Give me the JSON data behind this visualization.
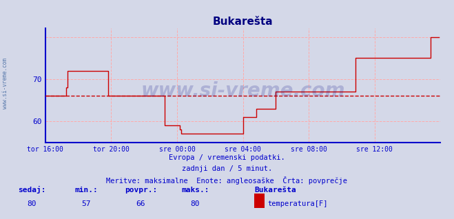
{
  "title": "Bukarešta",
  "subtitle_lines": [
    "Evropa / vremenski podatki.",
    "zadnji dan / 5 minut.",
    "Meritve: maksimalne  Enote: angleosaške  Črta: povprečje"
  ],
  "footer_labels": [
    "sedaj:",
    "min.:",
    "povpr.:",
    "maks.:",
    "Bukarešta"
  ],
  "footer_values": [
    "80",
    "57",
    "66",
    "80"
  ],
  "legend_label": "temperatura[F]",
  "legend_color": "#cc0000",
  "background_color": "#d4d8e8",
  "plot_bg_color": "#d4d8e8",
  "title_color": "#000080",
  "axis_color": "#0000cc",
  "grid_color": "#ffaaaa",
  "avg_line_color": "#cc0000",
  "avg_line_value": 66,
  "line_color": "#cc0000",
  "watermark": "www.si-vreme.com",
  "watermark_color": "#000080",
  "x_tick_labels": [
    "tor 16:00",
    "tor 20:00",
    "sre 00:00",
    "sre 04:00",
    "sre 08:00",
    "sre 12:00"
  ],
  "x_tick_positions": [
    0,
    48,
    96,
    144,
    192,
    240
  ],
  "ylim": [
    55,
    82
  ],
  "yticks": [
    60,
    70
  ],
  "xlim": [
    0,
    288
  ],
  "data_points": [
    [
      0,
      66
    ],
    [
      1,
      66
    ],
    [
      2,
      66
    ],
    [
      3,
      66
    ],
    [
      4,
      66
    ],
    [
      5,
      66
    ],
    [
      6,
      66
    ],
    [
      7,
      66
    ],
    [
      8,
      66
    ],
    [
      9,
      66
    ],
    [
      10,
      66
    ],
    [
      11,
      66
    ],
    [
      12,
      66
    ],
    [
      13,
      66
    ],
    [
      14,
      66
    ],
    [
      15,
      68
    ],
    [
      16,
      72
    ],
    [
      17,
      72
    ],
    [
      18,
      72
    ],
    [
      19,
      72
    ],
    [
      20,
      72
    ],
    [
      21,
      72
    ],
    [
      22,
      72
    ],
    [
      23,
      72
    ],
    [
      24,
      72
    ],
    [
      25,
      72
    ],
    [
      26,
      72
    ],
    [
      27,
      72
    ],
    [
      28,
      72
    ],
    [
      29,
      72
    ],
    [
      30,
      72
    ],
    [
      31,
      72
    ],
    [
      32,
      72
    ],
    [
      33,
      72
    ],
    [
      34,
      72
    ],
    [
      35,
      72
    ],
    [
      36,
      72
    ],
    [
      37,
      72
    ],
    [
      38,
      72
    ],
    [
      39,
      72
    ],
    [
      40,
      72
    ],
    [
      41,
      72
    ],
    [
      42,
      72
    ],
    [
      43,
      72
    ],
    [
      44,
      72
    ],
    [
      45,
      72
    ],
    [
      46,
      66
    ],
    [
      47,
      66
    ],
    [
      48,
      66
    ],
    [
      49,
      66
    ],
    [
      50,
      66
    ],
    [
      51,
      66
    ],
    [
      52,
      66
    ],
    [
      53,
      66
    ],
    [
      54,
      66
    ],
    [
      55,
      66
    ],
    [
      56,
      66
    ],
    [
      57,
      66
    ],
    [
      58,
      66
    ],
    [
      59,
      66
    ],
    [
      60,
      66
    ],
    [
      61,
      66
    ],
    [
      62,
      66
    ],
    [
      63,
      66
    ],
    [
      64,
      66
    ],
    [
      65,
      66
    ],
    [
      66,
      66
    ],
    [
      67,
      66
    ],
    [
      68,
      66
    ],
    [
      69,
      66
    ],
    [
      70,
      66
    ],
    [
      71,
      66
    ],
    [
      72,
      66
    ],
    [
      73,
      66
    ],
    [
      74,
      66
    ],
    [
      75,
      66
    ],
    [
      76,
      66
    ],
    [
      77,
      66
    ],
    [
      78,
      66
    ],
    [
      79,
      66
    ],
    [
      80,
      66
    ],
    [
      81,
      66
    ],
    [
      82,
      66
    ],
    [
      83,
      66
    ],
    [
      84,
      66
    ],
    [
      85,
      66
    ],
    [
      86,
      66
    ],
    [
      87,
      59
    ],
    [
      88,
      59
    ],
    [
      89,
      59
    ],
    [
      90,
      59
    ],
    [
      91,
      59
    ],
    [
      92,
      59
    ],
    [
      93,
      59
    ],
    [
      94,
      59
    ],
    [
      95,
      59
    ],
    [
      96,
      59
    ],
    [
      97,
      59
    ],
    [
      98,
      58
    ],
    [
      99,
      57
    ],
    [
      100,
      57
    ],
    [
      101,
      57
    ],
    [
      102,
      57
    ],
    [
      103,
      57
    ],
    [
      104,
      57
    ],
    [
      105,
      57
    ],
    [
      106,
      57
    ],
    [
      107,
      57
    ],
    [
      108,
      57
    ],
    [
      109,
      57
    ],
    [
      110,
      57
    ],
    [
      111,
      57
    ],
    [
      112,
      57
    ],
    [
      113,
      57
    ],
    [
      114,
      57
    ],
    [
      115,
      57
    ],
    [
      116,
      57
    ],
    [
      117,
      57
    ],
    [
      118,
      57
    ],
    [
      119,
      57
    ],
    [
      120,
      57
    ],
    [
      121,
      57
    ],
    [
      122,
      57
    ],
    [
      123,
      57
    ],
    [
      124,
      57
    ],
    [
      125,
      57
    ],
    [
      126,
      57
    ],
    [
      127,
      57
    ],
    [
      128,
      57
    ],
    [
      129,
      57
    ],
    [
      130,
      57
    ],
    [
      131,
      57
    ],
    [
      132,
      57
    ],
    [
      133,
      57
    ],
    [
      134,
      57
    ],
    [
      135,
      57
    ],
    [
      136,
      57
    ],
    [
      137,
      57
    ],
    [
      138,
      57
    ],
    [
      139,
      57
    ],
    [
      140,
      57
    ],
    [
      141,
      57
    ],
    [
      142,
      57
    ],
    [
      143,
      57
    ],
    [
      144,
      61
    ],
    [
      145,
      61
    ],
    [
      146,
      61
    ],
    [
      147,
      61
    ],
    [
      148,
      61
    ],
    [
      149,
      61
    ],
    [
      150,
      61
    ],
    [
      151,
      61
    ],
    [
      152,
      61
    ],
    [
      153,
      61
    ],
    [
      154,
      63
    ],
    [
      155,
      63
    ],
    [
      156,
      63
    ],
    [
      157,
      63
    ],
    [
      158,
      63
    ],
    [
      159,
      63
    ],
    [
      160,
      63
    ],
    [
      161,
      63
    ],
    [
      162,
      63
    ],
    [
      163,
      63
    ],
    [
      164,
      63
    ],
    [
      165,
      63
    ],
    [
      166,
      63
    ],
    [
      167,
      63
    ],
    [
      168,
      67
    ],
    [
      169,
      67
    ],
    [
      170,
      67
    ],
    [
      171,
      67
    ],
    [
      172,
      67
    ],
    [
      173,
      67
    ],
    [
      174,
      67
    ],
    [
      175,
      67
    ],
    [
      176,
      67
    ],
    [
      177,
      67
    ],
    [
      178,
      67
    ],
    [
      179,
      67
    ],
    [
      180,
      67
    ],
    [
      181,
      67
    ],
    [
      182,
      67
    ],
    [
      183,
      67
    ],
    [
      184,
      67
    ],
    [
      185,
      67
    ],
    [
      186,
      67
    ],
    [
      187,
      67
    ],
    [
      188,
      67
    ],
    [
      189,
      67
    ],
    [
      190,
      67
    ],
    [
      191,
      67
    ],
    [
      192,
      67
    ],
    [
      193,
      67
    ],
    [
      194,
      67
    ],
    [
      195,
      67
    ],
    [
      196,
      67
    ],
    [
      197,
      67
    ],
    [
      198,
      67
    ],
    [
      199,
      67
    ],
    [
      200,
      67
    ],
    [
      201,
      67
    ],
    [
      202,
      67
    ],
    [
      203,
      67
    ],
    [
      204,
      67
    ],
    [
      205,
      67
    ],
    [
      206,
      67
    ],
    [
      207,
      67
    ],
    [
      208,
      67
    ],
    [
      209,
      67
    ],
    [
      210,
      67
    ],
    [
      211,
      67
    ],
    [
      212,
      67
    ],
    [
      213,
      67
    ],
    [
      214,
      67
    ],
    [
      215,
      67
    ],
    [
      216,
      67
    ],
    [
      217,
      67
    ],
    [
      218,
      67
    ],
    [
      219,
      67
    ],
    [
      220,
      67
    ],
    [
      221,
      67
    ],
    [
      222,
      67
    ],
    [
      223,
      67
    ],
    [
      224,
      67
    ],
    [
      225,
      67
    ],
    [
      226,
      75
    ],
    [
      227,
      75
    ],
    [
      228,
      75
    ],
    [
      229,
      75
    ],
    [
      230,
      75
    ],
    [
      231,
      75
    ],
    [
      232,
      75
    ],
    [
      233,
      75
    ],
    [
      234,
      75
    ],
    [
      235,
      75
    ],
    [
      236,
      75
    ],
    [
      237,
      75
    ],
    [
      238,
      75
    ],
    [
      239,
      75
    ],
    [
      240,
      75
    ],
    [
      241,
      75
    ],
    [
      242,
      75
    ],
    [
      243,
      75
    ],
    [
      244,
      75
    ],
    [
      245,
      75
    ],
    [
      246,
      75
    ],
    [
      247,
      75
    ],
    [
      248,
      75
    ],
    [
      249,
      75
    ],
    [
      250,
      75
    ],
    [
      251,
      75
    ],
    [
      252,
      75
    ],
    [
      253,
      75
    ],
    [
      254,
      75
    ],
    [
      255,
      75
    ],
    [
      256,
      75
    ],
    [
      257,
      75
    ],
    [
      258,
      75
    ],
    [
      259,
      75
    ],
    [
      260,
      75
    ],
    [
      261,
      75
    ],
    [
      262,
      75
    ],
    [
      263,
      75
    ],
    [
      264,
      75
    ],
    [
      265,
      75
    ],
    [
      266,
      75
    ],
    [
      267,
      75
    ],
    [
      268,
      75
    ],
    [
      269,
      75
    ],
    [
      270,
      75
    ],
    [
      271,
      75
    ],
    [
      272,
      75
    ],
    [
      273,
      75
    ],
    [
      274,
      75
    ],
    [
      275,
      75
    ],
    [
      276,
      75
    ],
    [
      277,
      75
    ],
    [
      278,
      75
    ],
    [
      279,
      75
    ],
    [
      280,
      75
    ],
    [
      281,
      80
    ],
    [
      282,
      80
    ],
    [
      283,
      80
    ],
    [
      284,
      80
    ],
    [
      285,
      80
    ],
    [
      286,
      80
    ],
    [
      287,
      80
    ]
  ]
}
